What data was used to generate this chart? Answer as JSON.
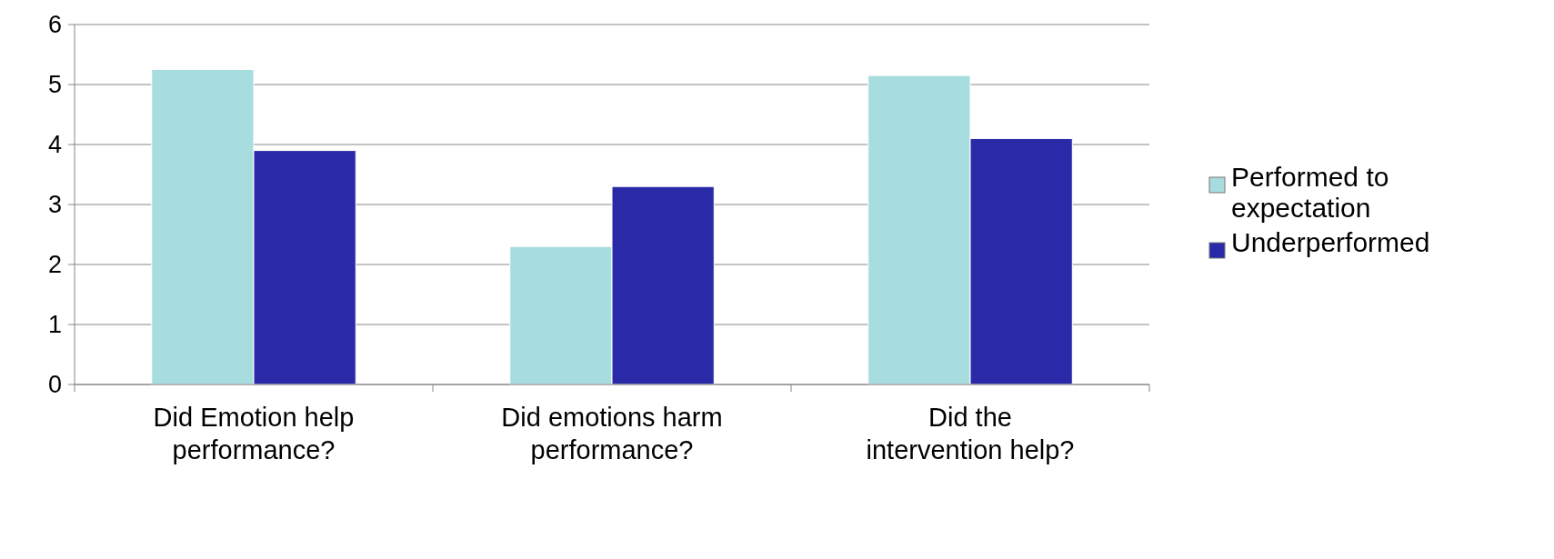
{
  "chart_data": {
    "type": "bar",
    "categories": [
      "Did Emotion help performance?",
      "Did emotions harm performance?",
      "Did the intervention help?"
    ],
    "series": [
      {
        "name": "Performed to expectation",
        "color": "#a8dde0",
        "values": [
          5.25,
          2.3,
          5.15
        ]
      },
      {
        "name": "Underperformed",
        "color": "#2a2aa8",
        "values": [
          3.9,
          3.3,
          4.1
        ]
      }
    ],
    "ylim": [
      0,
      6
    ],
    "yticks": [
      0,
      1,
      2,
      3,
      4,
      5,
      6
    ],
    "grid": "y",
    "legend": "right"
  }
}
